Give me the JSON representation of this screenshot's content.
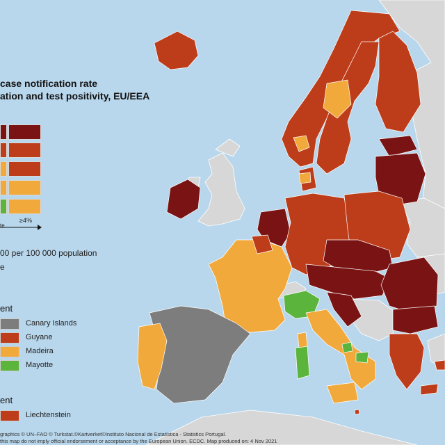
{
  "title": {
    "line1": "case notification rate",
    "line2": "ation and test positivity, EU/EEA"
  },
  "legend": {
    "arrow_label": "≥4%",
    "axis_fragment": "te",
    "population_note": "00 per 100 000 population",
    "note_fragment": "e",
    "grid_colors": [
      [
        "#7a1414",
        "#7a1414"
      ],
      [
        "#bd3d1a",
        "#bd3d1a"
      ],
      [
        "#f2a93b",
        "#bd3d1a"
      ],
      [
        "#f2a93b",
        "#f2a93b"
      ],
      [
        "#5bb43c",
        "#f2a93b"
      ]
    ]
  },
  "outermost_regions": {
    "heading_fragment": "ent",
    "items": [
      {
        "label": "Canary Islands",
        "color": "#7d7d7d"
      },
      {
        "label": "Guyane",
        "color": "#bd3d1a"
      },
      {
        "label": "Madeira",
        "color": "#f2a93b"
      },
      {
        "label": "Mayotte",
        "color": "#5bb43c"
      }
    ]
  },
  "other_regions": {
    "heading_fragment": "ent",
    "items": [
      {
        "label": "Liechtenstein",
        "color": "#bd3d1a"
      }
    ]
  },
  "colors": {
    "sea": "#b9d7ec",
    "non_eu": "#d7d7d7",
    "dark_red": "#7a1414",
    "red": "#bd3d1a",
    "orange": "#f2a93b",
    "green": "#5bb43c",
    "grey": "#7d7d7d"
  },
  "footer": {
    "line1": "graphics © UN–FAO © Turkstat.©Kartverket©Instituto Nacional de Estatística - Statistics Portugal.",
    "line2": "this map do not imply official endorsement or acceptance by the European Union. ECDC. Map produced on: 4 Nov 2021"
  }
}
